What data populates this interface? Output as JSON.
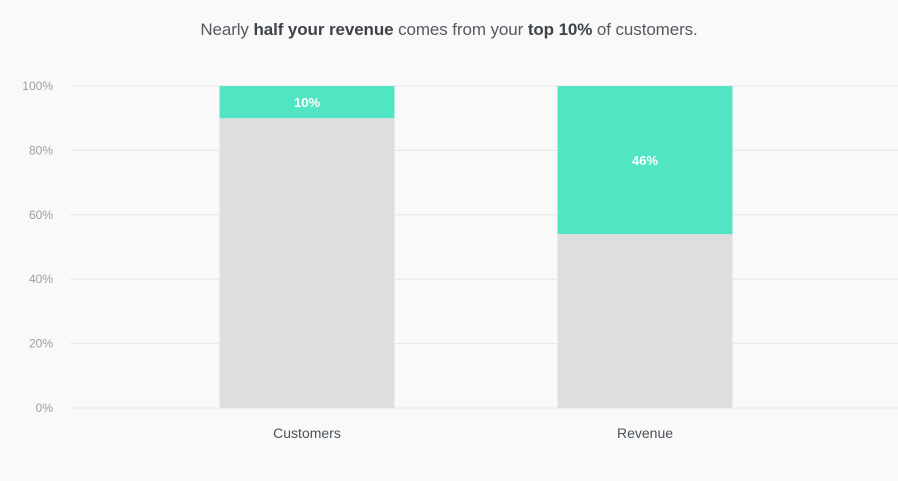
{
  "title": {
    "part1": "Nearly ",
    "bold1": "half your revenue",
    "part2": " comes from your ",
    "bold2": "top 10%",
    "part3": " of customers."
  },
  "colors": {
    "background": "#f9f9f9",
    "highlight": "#52e5c3",
    "remainder": "#dedede",
    "gridline": "#e8e8e8"
  },
  "chart_data": {
    "type": "bar",
    "stacked": true,
    "categories": [
      "Customers",
      "Revenue"
    ],
    "series": [
      {
        "values": [
          90,
          54
        ],
        "color": "#dedede"
      },
      {
        "values": [
          10,
          46
        ],
        "color": "#52e5c3",
        "data_labels": [
          "10%",
          "46%"
        ]
      }
    ],
    "yticks": [
      "0%",
      "20%",
      "40%",
      "60%",
      "80%",
      "100%"
    ],
    "ylim": [
      0,
      100
    ],
    "grid": true,
    "legend": "none"
  }
}
